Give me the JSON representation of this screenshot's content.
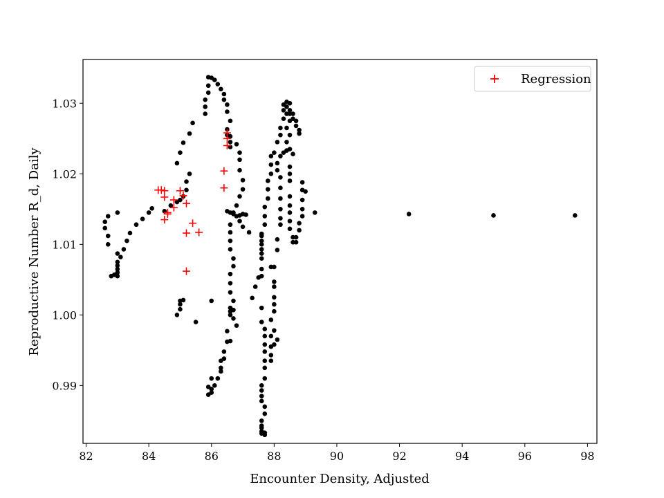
{
  "chart_data": {
    "type": "scatter",
    "title": "",
    "xlabel": "Encounter Density, Adjusted",
    "ylabel": "Reproductive Number R_d, Daily",
    "xlim": [
      81.9,
      98.3
    ],
    "ylim": [
      0.9818,
      1.0362
    ],
    "xticks": [
      82,
      84,
      86,
      88,
      90,
      92,
      94,
      96,
      98
    ],
    "yticks": [
      0.99,
      1.0,
      1.01,
      1.02,
      1.03
    ],
    "ytick_labels": [
      "0.99",
      "1.00",
      "1.01",
      "1.02",
      "1.03"
    ],
    "grid": false,
    "legend_position": "top-right",
    "series": [
      {
        "name": "",
        "marker": "circle",
        "color": "#000000",
        "points": [
          [
            82.6,
            1.0132
          ],
          [
            82.6,
            1.0123
          ],
          [
            82.7,
            1.014
          ],
          [
            82.7,
            1.0112
          ],
          [
            82.7,
            1.01
          ],
          [
            82.8,
            1.0055
          ],
          [
            82.9,
            1.0057
          ],
          [
            83.0,
            1.0145
          ],
          [
            83.0,
            1.0087
          ],
          [
            83.0,
            1.0075
          ],
          [
            83.0,
            1.007
          ],
          [
            83.0,
            1.0065
          ],
          [
            83.0,
            1.006
          ],
          [
            83.0,
            1.0055
          ],
          [
            83.1,
            1.0082
          ],
          [
            83.2,
            1.0093
          ],
          [
            83.3,
            1.0105
          ],
          [
            83.4,
            1.0116
          ],
          [
            83.6,
            1.0128
          ],
          [
            83.8,
            1.0136
          ],
          [
            84.0,
            1.0145
          ],
          [
            84.1,
            1.0151
          ],
          [
            84.5,
            1.0147
          ],
          [
            84.7,
            1.0155
          ],
          [
            84.9,
            1.016
          ],
          [
            85.0,
            1.0163
          ],
          [
            85.1,
            1.0168
          ],
          [
            85.2,
            1.0177
          ],
          [
            85.2,
            1.0189
          ],
          [
            85.3,
            1.02
          ],
          [
            84.9,
            1.0215
          ],
          [
            85.0,
            1.023
          ],
          [
            85.1,
            1.0244
          ],
          [
            85.3,
            1.0257
          ],
          [
            85.4,
            1.0272
          ],
          [
            84.9,
            1.0
          ],
          [
            85.0,
            1.0008
          ],
          [
            85.0,
            1.0015
          ],
          [
            85.0,
            1.002
          ],
          [
            85.1,
            1.0021
          ],
          [
            85.5,
            0.999
          ],
          [
            85.8,
            1.0285
          ],
          [
            85.8,
            1.0295
          ],
          [
            85.8,
            1.0305
          ],
          [
            85.9,
            1.0315
          ],
          [
            85.9,
            1.0325
          ],
          [
            85.9,
            1.0337
          ],
          [
            86.0,
            1.0336
          ],
          [
            86.1,
            1.0333
          ],
          [
            86.2,
            1.0327
          ],
          [
            86.3,
            1.032
          ],
          [
            86.4,
            1.0313
          ],
          [
            86.4,
            1.0305
          ],
          [
            86.5,
            1.0298
          ],
          [
            86.5,
            1.0288
          ],
          [
            86.6,
            1.0275
          ],
          [
            86.5,
            1.0263
          ],
          [
            86.5,
            1.0255
          ],
          [
            86.6,
            1.0253
          ],
          [
            86.6,
            1.0245
          ],
          [
            86.6,
            1.0238
          ],
          [
            86.8,
            1.0242
          ],
          [
            86.9,
            1.023
          ],
          [
            86.9,
            1.022
          ],
          [
            86.9,
            1.0205
          ],
          [
            87.0,
            1.0191
          ],
          [
            87.0,
            1.0178
          ],
          [
            86.9,
            1.0168
          ],
          [
            86.8,
            1.0155
          ],
          [
            86.7,
            1.0145
          ],
          [
            86.8,
            1.014
          ],
          [
            86.9,
            1.0133
          ],
          [
            87.0,
            1.0125
          ],
          [
            86.5,
            1.0147
          ],
          [
            86.6,
            1.0145
          ],
          [
            86.7,
            1.0143
          ],
          [
            86.9,
            1.0141
          ],
          [
            87.0,
            1.0143
          ],
          [
            87.1,
            1.0142
          ],
          [
            87.2,
            1.0117
          ],
          [
            86.6,
            1.0128
          ],
          [
            86.6,
            1.0117
          ],
          [
            86.6,
            1.0105
          ],
          [
            86.6,
            1.0093
          ],
          [
            86.7,
            1.008
          ],
          [
            86.7,
            1.0069
          ],
          [
            86.6,
            1.0058
          ],
          [
            86.6,
            1.0045
          ],
          [
            86.6,
            1.0032
          ],
          [
            86.7,
            1.002
          ],
          [
            86.6,
            1.001
          ],
          [
            86.7,
            1.0007
          ],
          [
            86.6,
            1.0005
          ],
          [
            86.6,
            1.0
          ],
          [
            86.7,
            0.9995
          ],
          [
            86.8,
            0.9985
          ],
          [
            86.5,
            0.9977
          ],
          [
            86.6,
            0.9963
          ],
          [
            86.5,
            0.9962
          ],
          [
            86.4,
            0.9948
          ],
          [
            86.4,
            0.9938
          ],
          [
            86.3,
            0.9935
          ],
          [
            86.3,
            0.9925
          ],
          [
            86.3,
            0.992
          ],
          [
            86.2,
            0.991
          ],
          [
            86.1,
            0.99
          ],
          [
            86.0,
            0.989
          ],
          [
            85.9,
            0.9887
          ],
          [
            85.9,
            0.9898
          ],
          [
            86.0,
            0.9895
          ],
          [
            86.0,
            0.991
          ],
          [
            86.0,
            1.002
          ],
          [
            87.3,
            1.0024
          ],
          [
            87.4,
            1.004
          ],
          [
            87.5,
            1.0053
          ],
          [
            87.6,
            1.0065
          ],
          [
            87.6,
            1.008
          ],
          [
            87.6,
            1.0093
          ],
          [
            87.6,
            1.0105
          ],
          [
            87.6,
            1.0115
          ],
          [
            87.7,
            1.0128
          ],
          [
            87.7,
            1.014
          ],
          [
            87.7,
            1.0153
          ],
          [
            87.8,
            1.0165
          ],
          [
            87.8,
            1.0178
          ],
          [
            87.8,
            1.019
          ],
          [
            87.9,
            1.02
          ],
          [
            87.9,
            1.0213
          ],
          [
            87.9,
            1.0225
          ],
          [
            87.6,
            1.0112
          ],
          [
            87.6,
            1.01
          ],
          [
            87.6,
            1.0087
          ],
          [
            87.6,
            1.0055
          ],
          [
            87.6,
            1.001
          ],
          [
            87.6,
            0.999
          ],
          [
            87.7,
            0.998
          ],
          [
            87.7,
            0.997
          ],
          [
            87.7,
            0.9958
          ],
          [
            87.7,
            0.9948
          ],
          [
            87.7,
            0.9935
          ],
          [
            87.7,
            0.9925
          ],
          [
            87.7,
            0.991
          ],
          [
            87.6,
            0.99
          ],
          [
            87.6,
            0.9893
          ],
          [
            87.6,
            0.9885
          ],
          [
            87.6,
            0.9878
          ],
          [
            87.7,
            0.987
          ],
          [
            87.7,
            0.986
          ],
          [
            87.6,
            0.985
          ],
          [
            87.6,
            0.9843
          ],
          [
            87.6,
            0.984
          ],
          [
            87.6,
            0.9835
          ],
          [
            87.7,
            0.9833
          ],
          [
            87.7,
            0.983
          ],
          [
            87.6,
            0.9832
          ],
          [
            87.9,
            1.0068
          ],
          [
            88.0,
            1.0068
          ],
          [
            88.0,
            1.0047
          ],
          [
            88.0,
            1.004
          ],
          [
            88.0,
            1.0025
          ],
          [
            88.0,
            1.0015
          ],
          [
            88.0,
            1.0005
          ],
          [
            87.9,
            0.9993
          ],
          [
            88.0,
            0.9978
          ],
          [
            87.9,
            0.997
          ],
          [
            88.0,
            0.9958
          ],
          [
            87.9,
            0.9955
          ],
          [
            87.9,
            0.9943
          ],
          [
            87.9,
            0.9935
          ],
          [
            88.1,
            0.9965
          ],
          [
            88.1,
            1.0092
          ],
          [
            88.0,
            1.023
          ],
          [
            88.1,
            1.0215
          ],
          [
            88.2,
            1.0225
          ],
          [
            88.3,
            1.023
          ],
          [
            88.4,
            1.0233
          ],
          [
            88.5,
            1.0235
          ],
          [
            88.6,
            1.0228
          ],
          [
            88.1,
            1.0205
          ],
          [
            88.2,
            1.0195
          ],
          [
            88.5,
            1.021
          ],
          [
            88.5,
            1.02
          ],
          [
            88.5,
            1.019
          ],
          [
            88.1,
            1.0245
          ],
          [
            88.2,
            1.0255
          ],
          [
            88.2,
            1.0265
          ],
          [
            88.3,
            1.0278
          ],
          [
            88.3,
            1.029
          ],
          [
            88.3,
            1.0298
          ],
          [
            88.4,
            1.0302
          ],
          [
            88.5,
            1.03
          ],
          [
            88.4,
            1.0295
          ],
          [
            88.5,
            1.029
          ],
          [
            88.5,
            1.0285
          ],
          [
            88.6,
            1.0285
          ],
          [
            88.6,
            1.0278
          ],
          [
            88.7,
            1.0275
          ],
          [
            88.7,
            1.0268
          ],
          [
            88.8,
            1.0262
          ],
          [
            88.8,
            1.0257
          ],
          [
            88.4,
            1.0285
          ],
          [
            88.5,
            1.0275
          ],
          [
            88.4,
            1.0265
          ],
          [
            88.5,
            1.0255
          ],
          [
            88.4,
            1.0245
          ],
          [
            88.2,
            1.018
          ],
          [
            88.2,
            1.0165
          ],
          [
            88.2,
            1.015
          ],
          [
            88.2,
            1.0137
          ],
          [
            88.2,
            1.0128
          ],
          [
            88.1,
            1.0107
          ],
          [
            88.5,
            1.0168
          ],
          [
            88.5,
            1.0155
          ],
          [
            88.5,
            1.0145
          ],
          [
            88.5,
            1.0133
          ],
          [
            88.5,
            1.0122
          ],
          [
            88.6,
            1.011
          ],
          [
            88.6,
            1.0103
          ],
          [
            88.7,
            1.0103
          ],
          [
            88.7,
            1.011
          ],
          [
            88.8,
            1.012
          ],
          [
            88.8,
            1.013
          ],
          [
            88.9,
            1.014
          ],
          [
            88.9,
            1.015
          ],
          [
            88.9,
            1.0163
          ],
          [
            88.9,
            1.0177
          ],
          [
            88.9,
            1.0188
          ],
          [
            89.0,
            1.0175
          ],
          [
            89.3,
            1.0145
          ],
          [
            92.3,
            1.0143
          ],
          [
            95.0,
            1.0141
          ],
          [
            97.6,
            1.0141
          ]
        ]
      },
      {
        "name": "Regression",
        "marker": "plus",
        "color": "#ff0000",
        "points": [
          [
            84.3,
            1.0177
          ],
          [
            84.4,
            1.0177
          ],
          [
            84.5,
            1.0176
          ],
          [
            84.5,
            1.0167
          ],
          [
            84.5,
            1.0135
          ],
          [
            84.6,
            1.0143
          ],
          [
            84.6,
            1.0145
          ],
          [
            84.8,
            1.0163
          ],
          [
            84.8,
            1.0152
          ],
          [
            85.0,
            1.0176
          ],
          [
            85.1,
            1.0169
          ],
          [
            85.2,
            1.0062
          ],
          [
            85.2,
            1.0116
          ],
          [
            85.2,
            1.0158
          ],
          [
            85.4,
            1.013
          ],
          [
            85.6,
            1.0117
          ],
          [
            86.4,
            1.018
          ],
          [
            86.4,
            1.0204
          ],
          [
            86.5,
            1.0258
          ],
          [
            86.5,
            1.025
          ],
          [
            86.5,
            1.024
          ]
        ]
      }
    ]
  }
}
